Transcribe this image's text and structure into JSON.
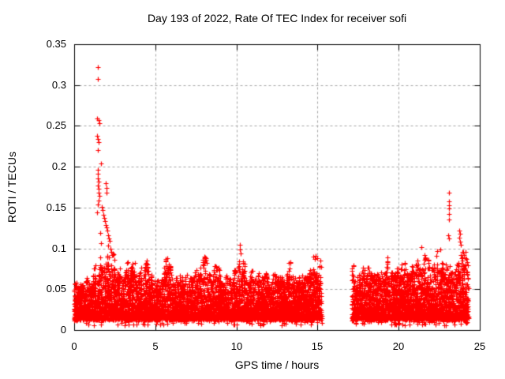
{
  "chart_data": {
    "type": "scatter",
    "title": "Day 193 of 2022, Rate Of TEC Index for receiver sofi",
    "xlabel": "GPS time / hours",
    "ylabel": "ROTI / TECUs",
    "xlim": [
      0,
      25
    ],
    "ylim": [
      0,
      0.35
    ],
    "x_ticks": [
      0,
      5,
      10,
      15,
      20,
      25
    ],
    "x_tick_labels": [
      "0",
      "5",
      "10",
      "15",
      "20",
      "25"
    ],
    "y_ticks": [
      0,
      0.05,
      0.1,
      0.15,
      0.2,
      0.25,
      0.3,
      0.35
    ],
    "y_tick_labels": [
      "0",
      "0.05",
      "0.1",
      "0.15",
      "0.2",
      "0.25",
      "0.3",
      "0.35"
    ],
    "grid": true,
    "grid_style": "dotted",
    "legend": null,
    "colors": {
      "marker": "#ff0000",
      "grid": "#a6a6a6",
      "axis": "#000000",
      "background": "#ffffff",
      "text": "#000000"
    },
    "marker": {
      "shape": "plus",
      "size": 7,
      "stroke": 1.2
    },
    "series": [
      {
        "name": "ROTI",
        "render": "dense-noise-band",
        "seed": 20220193,
        "dip_probability": 0.03,
        "dip_range": [
          0.006,
          0.018
        ],
        "spike_bin_hours": 0.12,
        "segments": [
          {
            "x_start": 0.0,
            "x_end": 15.25,
            "points": 6200,
            "y_floor": 0.014,
            "envelope": [
              [
                0,
                0.076
              ],
              [
                0.3,
                0.068
              ],
              [
                0.7,
                0.064
              ],
              [
                1.0,
                0.072
              ],
              [
                1.3,
                0.08
              ],
              [
                1.6,
                0.09
              ],
              [
                1.9,
                0.1
              ],
              [
                2.2,
                0.088
              ],
              [
                2.6,
                0.092
              ],
              [
                3.0,
                0.072
              ],
              [
                3.3,
                0.082
              ],
              [
                3.6,
                0.102
              ],
              [
                3.9,
                0.078
              ],
              [
                4.3,
                0.096
              ],
              [
                4.7,
                0.072
              ],
              [
                5.0,
                0.08
              ],
              [
                5.3,
                0.07
              ],
              [
                5.6,
                0.094
              ],
              [
                6.0,
                0.076
              ],
              [
                6.4,
                0.088
              ],
              [
                6.8,
                0.072
              ],
              [
                7.2,
                0.082
              ],
              [
                7.6,
                0.088
              ],
              [
                8.0,
                0.092
              ],
              [
                8.4,
                0.078
              ],
              [
                8.8,
                0.088
              ],
              [
                9.2,
                0.074
              ],
              [
                9.6,
                0.082
              ],
              [
                10.0,
                0.078
              ],
              [
                10.2,
                0.095
              ],
              [
                10.5,
                0.08
              ],
              [
                10.9,
                0.092
              ],
              [
                11.3,
                0.076
              ],
              [
                11.7,
                0.088
              ],
              [
                12.1,
                0.08
              ],
              [
                12.5,
                0.086
              ],
              [
                12.9,
                0.078
              ],
              [
                13.3,
                0.084
              ],
              [
                13.7,
                0.078
              ],
              [
                14.1,
                0.084
              ],
              [
                14.5,
                0.09
              ],
              [
                14.9,
                0.094
              ],
              [
                15.25,
                0.086
              ]
            ]
          },
          {
            "x_start": 17.1,
            "x_end": 24.3,
            "points": 3000,
            "y_floor": 0.014,
            "envelope": [
              [
                17.1,
                0.072
              ],
              [
                17.5,
                0.082
              ],
              [
                17.9,
                0.09
              ],
              [
                18.3,
                0.093
              ],
              [
                18.7,
                0.082
              ],
              [
                19.1,
                0.09
              ],
              [
                19.5,
                0.095
              ],
              [
                19.9,
                0.084
              ],
              [
                20.3,
                0.091
              ],
              [
                20.7,
                0.088
              ],
              [
                21.0,
                0.093
              ],
              [
                21.35,
                0.101
              ],
              [
                21.7,
                0.086
              ],
              [
                22.1,
                0.091
              ],
              [
                22.5,
                0.097
              ],
              [
                22.9,
                0.088
              ],
              [
                23.2,
                0.093
              ],
              [
                23.55,
                0.101
              ],
              [
                23.9,
                0.097
              ],
              [
                24.3,
                0.089
              ]
            ]
          }
        ],
        "outliers": [
          [
            1.46,
            0.322
          ],
          [
            1.46,
            0.307
          ],
          [
            1.43,
            0.259
          ],
          [
            1.53,
            0.257
          ],
          [
            1.56,
            0.253
          ],
          [
            1.43,
            0.238
          ],
          [
            1.46,
            0.234
          ],
          [
            1.49,
            0.23
          ],
          [
            1.46,
            0.22
          ],
          [
            1.63,
            0.204
          ],
          [
            1.44,
            0.196
          ],
          [
            1.47,
            0.191
          ],
          [
            1.44,
            0.186
          ],
          [
            1.5,
            0.182
          ],
          [
            1.46,
            0.177
          ],
          [
            1.52,
            0.173
          ],
          [
            1.49,
            0.168
          ],
          [
            1.55,
            0.164
          ],
          [
            1.51,
            0.159
          ],
          [
            1.95,
            0.18
          ],
          [
            2.0,
            0.174
          ],
          [
            1.97,
            0.168
          ],
          [
            1.44,
            0.154
          ],
          [
            1.7,
            0.151
          ],
          [
            1.74,
            0.147
          ],
          [
            1.43,
            0.144
          ],
          [
            1.79,
            0.141
          ],
          [
            1.84,
            0.137
          ],
          [
            1.89,
            0.133
          ],
          [
            1.94,
            0.129
          ],
          [
            1.99,
            0.126
          ],
          [
            2.04,
            0.122
          ],
          [
            1.61,
            0.119
          ],
          [
            2.09,
            0.116
          ],
          [
            2.14,
            0.112
          ],
          [
            2.19,
            0.109
          ],
          [
            1.66,
            0.106
          ],
          [
            2.11,
            0.103
          ],
          [
            2.24,
            0.1
          ],
          [
            2.3,
            0.096
          ],
          [
            2.36,
            0.092
          ],
          [
            2.05,
            0.089
          ],
          [
            10.2,
            0.104
          ],
          [
            10.22,
            0.099
          ],
          [
            10.24,
            0.094
          ],
          [
            14.76,
            0.09
          ],
          [
            14.83,
            0.087
          ],
          [
            14.9,
            0.091
          ],
          [
            14.96,
            0.088
          ],
          [
            21.38,
            0.102
          ],
          [
            22.55,
            0.099
          ],
          [
            23.12,
            0.168
          ],
          [
            23.12,
            0.158
          ],
          [
            23.09,
            0.153
          ],
          [
            23.12,
            0.149
          ],
          [
            23.12,
            0.142
          ],
          [
            23.09,
            0.135
          ],
          [
            23.06,
            0.116
          ],
          [
            23.12,
            0.112
          ],
          [
            23.74,
            0.122
          ],
          [
            23.78,
            0.118
          ],
          [
            23.72,
            0.113
          ],
          [
            23.8,
            0.108
          ],
          [
            23.85,
            0.104
          ],
          [
            23.98,
            0.096
          ],
          [
            24.05,
            0.092
          ]
        ]
      }
    ]
  }
}
